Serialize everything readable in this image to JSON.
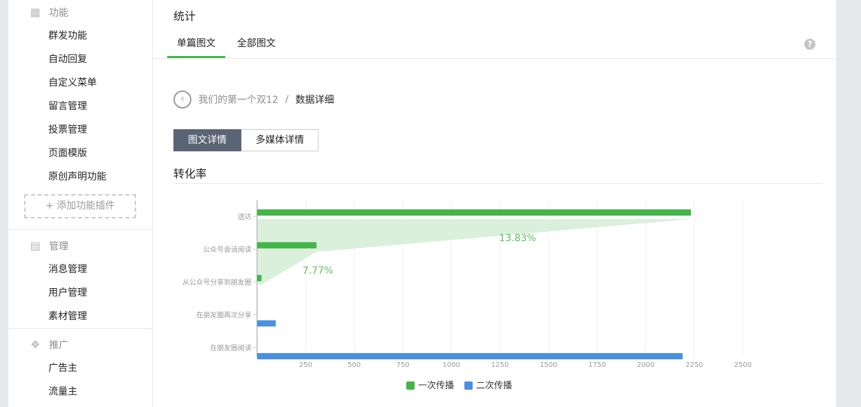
{
  "sidebar": {
    "groups": [
      {
        "label": "功能",
        "icon": "grid-icon",
        "items": [
          "群发功能",
          "自动回复",
          "自定义菜单",
          "留言管理",
          "投票管理",
          "页面模版",
          "原创声明功能"
        ],
        "add": "添加功能插件"
      },
      {
        "label": "管理",
        "icon": "inbox-icon",
        "items": [
          "消息管理",
          "用户管理",
          "素材管理"
        ]
      },
      {
        "label": "推广",
        "icon": "megaphone-icon",
        "items": [
          "广告主",
          "流量主"
        ]
      }
    ]
  },
  "main": {
    "title": "统计",
    "tabs": [
      {
        "label": "单篇图文",
        "active": true
      },
      {
        "label": "全部图文",
        "active": false
      }
    ],
    "help": "?",
    "breadcrumb": {
      "parent": "我们的第一个双12",
      "sep": "/",
      "current": "数据详细"
    },
    "segments": [
      {
        "label": "图文详情",
        "active": true
      },
      {
        "label": "多媒体详情",
        "active": false
      }
    ],
    "section_title": "转化率"
  },
  "chart_data": {
    "type": "bar",
    "orientation": "horizontal",
    "categories": [
      "送达",
      "公众号会话阅读",
      "从公众号分享到朋友圈",
      "在朋友圈再次分享",
      "在朋友圈阅读"
    ],
    "series": [
      {
        "name": "一次传播",
        "color": "#44b549",
        "values": [
          2233,
          306,
          23,
          null,
          null
        ]
      },
      {
        "name": "二次传播",
        "color": "#4a90e2",
        "values": [
          null,
          null,
          null,
          96,
          2190
        ]
      }
    ],
    "xlim": [
      0,
      2500
    ],
    "xticks": [
      250,
      500,
      750,
      1000,
      1250,
      1500,
      1750,
      2000,
      2250,
      2500
    ],
    "annotations": [
      "13.83%",
      "7.77%"
    ],
    "legend": "bottom",
    "grid": true
  }
}
